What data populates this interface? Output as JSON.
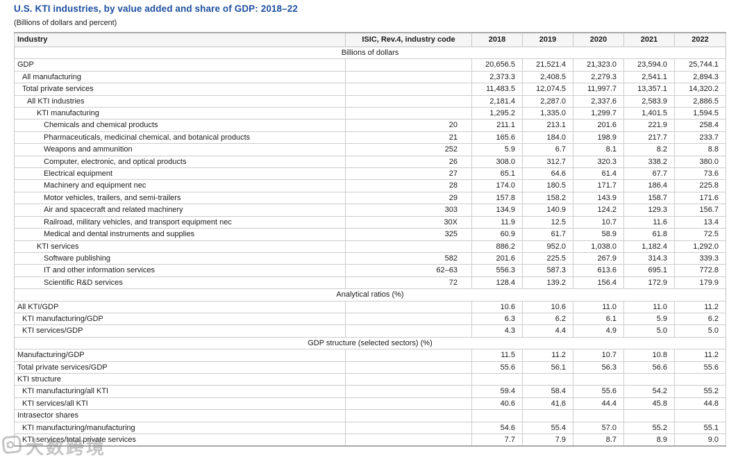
{
  "page": {
    "title": "U.S. KTI industries, by value added and share of GDP: 2018–22",
    "subtitle": "(Billions of dollars and percent)"
  },
  "table": {
    "columns": [
      "Industry",
      "ISIC, Rev.4, industry code",
      "2018",
      "2019",
      "2020",
      "2021",
      "2022"
    ],
    "rows": [
      {
        "type": "section",
        "label": "Billions of dollars"
      },
      {
        "type": "data",
        "indent": 0,
        "label": "GDP",
        "code": "",
        "values": [
          "20,656.5",
          "21,521.4",
          "21,323.0",
          "23,594.0",
          "25,744.1"
        ]
      },
      {
        "type": "data",
        "indent": 1,
        "label": "All manufacturing",
        "code": "",
        "values": [
          "2,373.3",
          "2,408.5",
          "2,279.3",
          "2,541.1",
          "2,894.3"
        ]
      },
      {
        "type": "data",
        "indent": 1,
        "label": "Total private services",
        "code": "",
        "values": [
          "11,483.5",
          "12,074.5",
          "11,997.7",
          "13,357.1",
          "14,320.2"
        ]
      },
      {
        "type": "data",
        "indent": 2,
        "label": "All KTI industries",
        "code": "",
        "values": [
          "2,181.4",
          "2,287.0",
          "2,337.6",
          "2,583.9",
          "2,886.5"
        ]
      },
      {
        "type": "data",
        "indent": 3,
        "label": "KTI manufacturing",
        "code": "",
        "values": [
          "1,295.2",
          "1,335.0",
          "1,299.7",
          "1,401.5",
          "1,594.5"
        ]
      },
      {
        "type": "data",
        "indent": 4,
        "label": "Chemicals and chemical products",
        "code": "20",
        "values": [
          "211.1",
          "213.1",
          "201.6",
          "221.9",
          "258.4"
        ]
      },
      {
        "type": "data",
        "indent": 4,
        "label": "Pharmaceuticals, medicinal chemical, and botanical products",
        "code": "21",
        "values": [
          "165.6",
          "184.0",
          "198.9",
          "217.7",
          "233.7"
        ]
      },
      {
        "type": "data",
        "indent": 4,
        "label": "Weapons and ammunition",
        "code": "252",
        "values": [
          "5.9",
          "6.7",
          "8.1",
          "8.2",
          "8.8"
        ]
      },
      {
        "type": "data",
        "indent": 4,
        "label": "Computer, electronic, and optical products",
        "code": "26",
        "values": [
          "308.0",
          "312.7",
          "320.3",
          "338.2",
          "380.0"
        ]
      },
      {
        "type": "data",
        "indent": 4,
        "label": "Electrical equipment",
        "code": "27",
        "values": [
          "65.1",
          "64.6",
          "61.4",
          "67.7",
          "73.6"
        ]
      },
      {
        "type": "data",
        "indent": 4,
        "label": "Machinery and equipment nec",
        "code": "28",
        "values": [
          "174.0",
          "180.5",
          "171.7",
          "186.4",
          "225.8"
        ]
      },
      {
        "type": "data",
        "indent": 4,
        "label": "Motor vehicles, trailers, and semi-trailers",
        "code": "29",
        "values": [
          "157.8",
          "158.2",
          "143.9",
          "158.7",
          "171.6"
        ]
      },
      {
        "type": "data",
        "indent": 4,
        "label": "Air and spacecraft and related machinery",
        "code": "303",
        "values": [
          "134.9",
          "140.9",
          "124.2",
          "129.3",
          "156.7"
        ]
      },
      {
        "type": "data",
        "indent": 4,
        "label": "Railroad, military vehicles, and transport equipment nec",
        "code": "30X",
        "values": [
          "11.9",
          "12.5",
          "10.7",
          "11.6",
          "13.4"
        ]
      },
      {
        "type": "data",
        "indent": 4,
        "label": "Medical and dental instruments and supplies",
        "code": "325",
        "values": [
          "60.9",
          "61.7",
          "58.9",
          "61.8",
          "72.5"
        ]
      },
      {
        "type": "data",
        "indent": 3,
        "label": "KTI services",
        "code": "",
        "values": [
          "886.2",
          "952.0",
          "1,038.0",
          "1,182.4",
          "1,292.0"
        ]
      },
      {
        "type": "data",
        "indent": 4,
        "label": "Software publishing",
        "code": "582",
        "values": [
          "201.6",
          "225.5",
          "267.9",
          "314.3",
          "339.3"
        ]
      },
      {
        "type": "data",
        "indent": 4,
        "label": "IT and other information services",
        "code": "62–63",
        "values": [
          "556.3",
          "587.3",
          "613.6",
          "695.1",
          "772.8"
        ]
      },
      {
        "type": "data",
        "indent": 4,
        "label": "Scientific R&D services",
        "code": "72",
        "values": [
          "128.4",
          "139.2",
          "156.4",
          "172.9",
          "179.9"
        ]
      },
      {
        "type": "section",
        "label": "Analytical ratios (%)"
      },
      {
        "type": "data",
        "indent": 0,
        "label": "All KTI/GDP",
        "code": "",
        "values": [
          "10.6",
          "10.6",
          "11.0",
          "11.0",
          "11.2"
        ]
      },
      {
        "type": "data",
        "indent": 1,
        "label": "KTI manufacturing/GDP",
        "code": "",
        "values": [
          "6.3",
          "6.2",
          "6.1",
          "5.9",
          "6.2"
        ]
      },
      {
        "type": "data",
        "indent": 1,
        "label": "KTI services/GDP",
        "code": "",
        "values": [
          "4.3",
          "4.4",
          "4.9",
          "5.0",
          "5.0"
        ]
      },
      {
        "type": "section",
        "label": "GDP structure (selected sectors) (%)"
      },
      {
        "type": "data",
        "indent": 0,
        "label": "Manufacturing/GDP",
        "code": "",
        "values": [
          "11.5",
          "11.2",
          "10.7",
          "10.8",
          "11.2"
        ]
      },
      {
        "type": "data",
        "indent": 0,
        "label": "Total private services/GDP",
        "code": "",
        "values": [
          "55.6",
          "56.1",
          "56.3",
          "56.6",
          "55.6"
        ]
      },
      {
        "type": "data",
        "indent": 0,
        "label": "KTI structure",
        "code": "",
        "values": [
          "",
          "",
          "",
          "",
          ""
        ]
      },
      {
        "type": "data",
        "indent": 1,
        "label": "KTI manufacturing/all KTI",
        "code": "",
        "values": [
          "59.4",
          "58.4",
          "55.6",
          "54.2",
          "55.2"
        ]
      },
      {
        "type": "data",
        "indent": 1,
        "label": "KTI services/all KTI",
        "code": "",
        "values": [
          "40.6",
          "41.6",
          "44.4",
          "45.8",
          "44.8"
        ]
      },
      {
        "type": "data",
        "indent": 0,
        "label": "Intrasector shares",
        "code": "",
        "values": [
          "",
          "",
          "",
          "",
          ""
        ]
      },
      {
        "type": "data",
        "indent": 1,
        "label": "KTI manufacturing/manufacturing",
        "code": "",
        "values": [
          "54.6",
          "55.4",
          "57.0",
          "55.2",
          "55.1"
        ]
      },
      {
        "type": "data",
        "indent": 1,
        "label": "KTI services/total private services",
        "code": "",
        "values": [
          "7.7",
          "7.9",
          "8.7",
          "8.9",
          "9.0"
        ]
      }
    ]
  },
  "watermark": {
    "text": "大数跨境"
  },
  "colors": {
    "title_blue": "#1d4f9f",
    "header_bg": "#f5f5f5",
    "row_border": "#cccccc",
    "outer_border": "#a8a8a8",
    "text": "#1a1a1a",
    "watermark_gray": "#7d7d7d"
  }
}
